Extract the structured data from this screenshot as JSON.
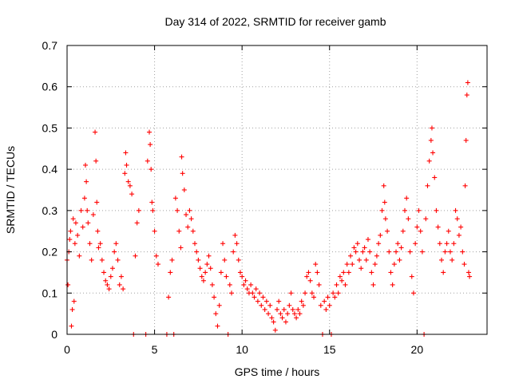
{
  "chart_data": {
    "type": "scatter",
    "title": "Day 314 of 2022, SRMTID for receiver gamb",
    "xlabel": "GPS time / hours",
    "ylabel": "SRMTID / TECUs",
    "xlim": [
      0,
      24
    ],
    "ylim": [
      0,
      0.7
    ],
    "x_ticks": [
      0,
      5,
      10,
      15,
      20
    ],
    "x_tick_labels": [
      "0",
      "5",
      "10",
      "15",
      "20"
    ],
    "y_ticks": [
      0,
      0.1,
      0.2,
      0.3,
      0.4,
      0.5,
      0.6,
      0.7
    ],
    "y_tick_labels": [
      "0",
      "0.1",
      "0.2",
      "0.3",
      "0.4",
      "0.5",
      "0.6",
      "0.7"
    ],
    "grid": true,
    "marker": "+",
    "color": "#ff0000",
    "series": [
      {
        "name": "SRMTID",
        "points": [
          [
            0.0,
            0.18
          ],
          [
            0.05,
            0.12
          ],
          [
            0.1,
            0.2
          ],
          [
            0.15,
            0.23
          ],
          [
            0.2,
            0.25
          ],
          [
            0.25,
            0.02
          ],
          [
            0.3,
            0.06
          ],
          [
            0.35,
            0.28
          ],
          [
            0.4,
            0.08
          ],
          [
            0.45,
            0.22
          ],
          [
            0.5,
            0.27
          ],
          [
            0.6,
            0.24
          ],
          [
            0.7,
            0.19
          ],
          [
            0.8,
            0.3
          ],
          [
            0.9,
            0.26
          ],
          [
            1.0,
            0.33
          ],
          [
            1.05,
            0.41
          ],
          [
            1.1,
            0.37
          ],
          [
            1.15,
            0.3
          ],
          [
            1.2,
            0.27
          ],
          [
            1.3,
            0.22
          ],
          [
            1.4,
            0.18
          ],
          [
            1.5,
            0.29
          ],
          [
            1.6,
            0.49
          ],
          [
            1.65,
            0.42
          ],
          [
            1.7,
            0.32
          ],
          [
            1.75,
            0.25
          ],
          [
            1.8,
            0.21
          ],
          [
            1.9,
            0.22
          ],
          [
            2.0,
            0.18
          ],
          [
            2.1,
            0.15
          ],
          [
            2.2,
            0.13
          ],
          [
            2.3,
            0.12
          ],
          [
            2.4,
            0.11
          ],
          [
            2.5,
            0.14
          ],
          [
            2.6,
            0.16
          ],
          [
            2.7,
            0.2
          ],
          [
            2.8,
            0.22
          ],
          [
            2.9,
            0.18
          ],
          [
            3.0,
            0.12
          ],
          [
            3.1,
            0.14
          ],
          [
            3.2,
            0.11
          ],
          [
            3.3,
            0.39
          ],
          [
            3.35,
            0.44
          ],
          [
            3.4,
            0.41
          ],
          [
            3.5,
            0.37
          ],
          [
            3.6,
            0.36
          ],
          [
            3.7,
            0.34
          ],
          [
            3.8,
            0.0
          ],
          [
            3.9,
            0.19
          ],
          [
            4.0,
            0.27
          ],
          [
            4.1,
            0.3
          ],
          [
            4.5,
            0.0
          ],
          [
            4.6,
            0.42
          ],
          [
            4.7,
            0.49
          ],
          [
            4.75,
            0.46
          ],
          [
            4.8,
            0.4
          ],
          [
            4.85,
            0.32
          ],
          [
            4.9,
            0.3
          ],
          [
            5.0,
            0.25
          ],
          [
            5.1,
            0.19
          ],
          [
            5.2,
            0.17
          ],
          [
            5.7,
            0.0
          ],
          [
            5.8,
            0.09
          ],
          [
            5.9,
            0.15
          ],
          [
            6.0,
            0.18
          ],
          [
            6.1,
            0.0
          ],
          [
            6.2,
            0.33
          ],
          [
            6.3,
            0.3
          ],
          [
            6.4,
            0.25
          ],
          [
            6.5,
            0.21
          ],
          [
            6.55,
            0.43
          ],
          [
            6.6,
            0.39
          ],
          [
            6.7,
            0.35
          ],
          [
            6.8,
            0.29
          ],
          [
            6.9,
            0.26
          ],
          [
            7.0,
            0.3
          ],
          [
            7.1,
            0.28
          ],
          [
            7.2,
            0.25
          ],
          [
            7.3,
            0.22
          ],
          [
            7.4,
            0.2
          ],
          [
            7.5,
            0.18
          ],
          [
            7.6,
            0.16
          ],
          [
            7.7,
            0.14
          ],
          [
            7.8,
            0.13
          ],
          [
            7.9,
            0.15
          ],
          [
            8.0,
            0.17
          ],
          [
            8.1,
            0.19
          ],
          [
            8.2,
            0.16
          ],
          [
            8.3,
            0.12
          ],
          [
            8.4,
            0.09
          ],
          [
            8.5,
            0.05
          ],
          [
            8.6,
            0.02
          ],
          [
            8.7,
            0.07
          ],
          [
            8.8,
            0.15
          ],
          [
            8.9,
            0.22
          ],
          [
            9.0,
            0.18
          ],
          [
            9.1,
            0.14
          ],
          [
            9.2,
            0.0
          ],
          [
            9.3,
            0.12
          ],
          [
            9.4,
            0.1
          ],
          [
            9.5,
            0.2
          ],
          [
            9.6,
            0.24
          ],
          [
            9.7,
            0.22
          ],
          [
            9.8,
            0.18
          ],
          [
            9.9,
            0.15
          ],
          [
            10.0,
            0.14
          ],
          [
            10.1,
            0.12
          ],
          [
            10.2,
            0.13
          ],
          [
            10.3,
            0.11
          ],
          [
            10.4,
            0.1
          ],
          [
            10.5,
            0.12
          ],
          [
            10.6,
            0.1
          ],
          [
            10.7,
            0.09
          ],
          [
            10.8,
            0.11
          ],
          [
            10.9,
            0.08
          ],
          [
            11.0,
            0.1
          ],
          [
            11.1,
            0.07
          ],
          [
            11.2,
            0.09
          ],
          [
            11.3,
            0.06
          ],
          [
            11.4,
            0.08
          ],
          [
            11.5,
            0.05
          ],
          [
            11.6,
            0.07
          ],
          [
            11.7,
            0.04
          ],
          [
            11.8,
            0.03
          ],
          [
            11.9,
            0.01
          ],
          [
            12.0,
            0.06
          ],
          [
            12.1,
            0.08
          ],
          [
            12.2,
            0.05
          ],
          [
            12.3,
            0.04
          ],
          [
            12.4,
            0.06
          ],
          [
            12.5,
            0.03
          ],
          [
            12.6,
            0.05
          ],
          [
            12.7,
            0.07
          ],
          [
            12.8,
            0.1
          ],
          [
            12.9,
            0.06
          ],
          [
            13.0,
            0.05
          ],
          [
            13.1,
            0.04
          ],
          [
            13.2,
            0.06
          ],
          [
            13.3,
            0.05
          ],
          [
            13.4,
            0.08
          ],
          [
            13.5,
            0.07
          ],
          [
            13.6,
            0.1
          ],
          [
            13.7,
            0.14
          ],
          [
            13.8,
            0.15
          ],
          [
            13.9,
            0.13
          ],
          [
            14.0,
            0.1
          ],
          [
            14.1,
            0.09
          ],
          [
            14.2,
            0.17
          ],
          [
            14.3,
            0.15
          ],
          [
            14.4,
            0.12
          ],
          [
            14.5,
            0.07
          ],
          [
            14.6,
            0.0
          ],
          [
            14.7,
            0.08
          ],
          [
            14.8,
            0.06
          ],
          [
            14.9,
            0.09
          ],
          [
            15.0,
            0.07
          ],
          [
            15.1,
            0.0
          ],
          [
            15.2,
            0.1
          ],
          [
            15.3,
            0.09
          ],
          [
            15.4,
            0.12
          ],
          [
            15.5,
            0.1
          ],
          [
            15.6,
            0.14
          ],
          [
            15.7,
            0.13
          ],
          [
            15.8,
            0.15
          ],
          [
            15.9,
            0.12
          ],
          [
            16.0,
            0.17
          ],
          [
            16.1,
            0.15
          ],
          [
            16.2,
            0.19
          ],
          [
            16.3,
            0.17
          ],
          [
            16.4,
            0.21
          ],
          [
            16.5,
            0.2
          ],
          [
            16.6,
            0.22
          ],
          [
            16.7,
            0.18
          ],
          [
            16.8,
            0.16
          ],
          [
            16.9,
            0.2
          ],
          [
            17.0,
            0.21
          ],
          [
            17.1,
            0.18
          ],
          [
            17.2,
            0.23
          ],
          [
            17.3,
            0.2
          ],
          [
            17.4,
            0.15
          ],
          [
            17.5,
            0.12
          ],
          [
            17.6,
            0.17
          ],
          [
            17.7,
            0.19
          ],
          [
            17.8,
            0.22
          ],
          [
            17.9,
            0.24
          ],
          [
            18.0,
            0.3
          ],
          [
            18.1,
            0.36
          ],
          [
            18.15,
            0.32
          ],
          [
            18.2,
            0.28
          ],
          [
            18.3,
            0.25
          ],
          [
            18.4,
            0.2
          ],
          [
            18.5,
            0.15
          ],
          [
            18.6,
            0.12
          ],
          [
            18.7,
            0.17
          ],
          [
            18.8,
            0.2
          ],
          [
            18.9,
            0.22
          ],
          [
            19.0,
            0.18
          ],
          [
            19.1,
            0.21
          ],
          [
            19.2,
            0.25
          ],
          [
            19.3,
            0.3
          ],
          [
            19.4,
            0.33
          ],
          [
            19.5,
            0.28
          ],
          [
            19.6,
            0.2
          ],
          [
            19.7,
            0.14
          ],
          [
            19.8,
            0.1
          ],
          [
            19.9,
            0.22
          ],
          [
            20.0,
            0.26
          ],
          [
            20.1,
            0.3
          ],
          [
            20.2,
            0.25
          ],
          [
            20.3,
            0.2
          ],
          [
            20.4,
            0.0
          ],
          [
            20.5,
            0.28
          ],
          [
            20.6,
            0.36
          ],
          [
            20.7,
            0.42
          ],
          [
            20.8,
            0.47
          ],
          [
            20.85,
            0.5
          ],
          [
            20.9,
            0.44
          ],
          [
            21.0,
            0.38
          ],
          [
            21.1,
            0.3
          ],
          [
            21.2,
            0.26
          ],
          [
            21.3,
            0.22
          ],
          [
            21.4,
            0.18
          ],
          [
            21.5,
            0.15
          ],
          [
            21.6,
            0.2
          ],
          [
            21.7,
            0.22
          ],
          [
            21.8,
            0.25
          ],
          [
            21.9,
            0.2
          ],
          [
            22.0,
            0.18
          ],
          [
            22.1,
            0.22
          ],
          [
            22.2,
            0.3
          ],
          [
            22.3,
            0.28
          ],
          [
            22.4,
            0.24
          ],
          [
            22.5,
            0.26
          ],
          [
            22.6,
            0.2
          ],
          [
            22.7,
            0.17
          ],
          [
            22.75,
            0.36
          ],
          [
            22.8,
            0.47
          ],
          [
            22.85,
            0.58
          ],
          [
            22.9,
            0.61
          ],
          [
            22.95,
            0.15
          ],
          [
            23.0,
            0.14
          ]
        ]
      }
    ]
  }
}
